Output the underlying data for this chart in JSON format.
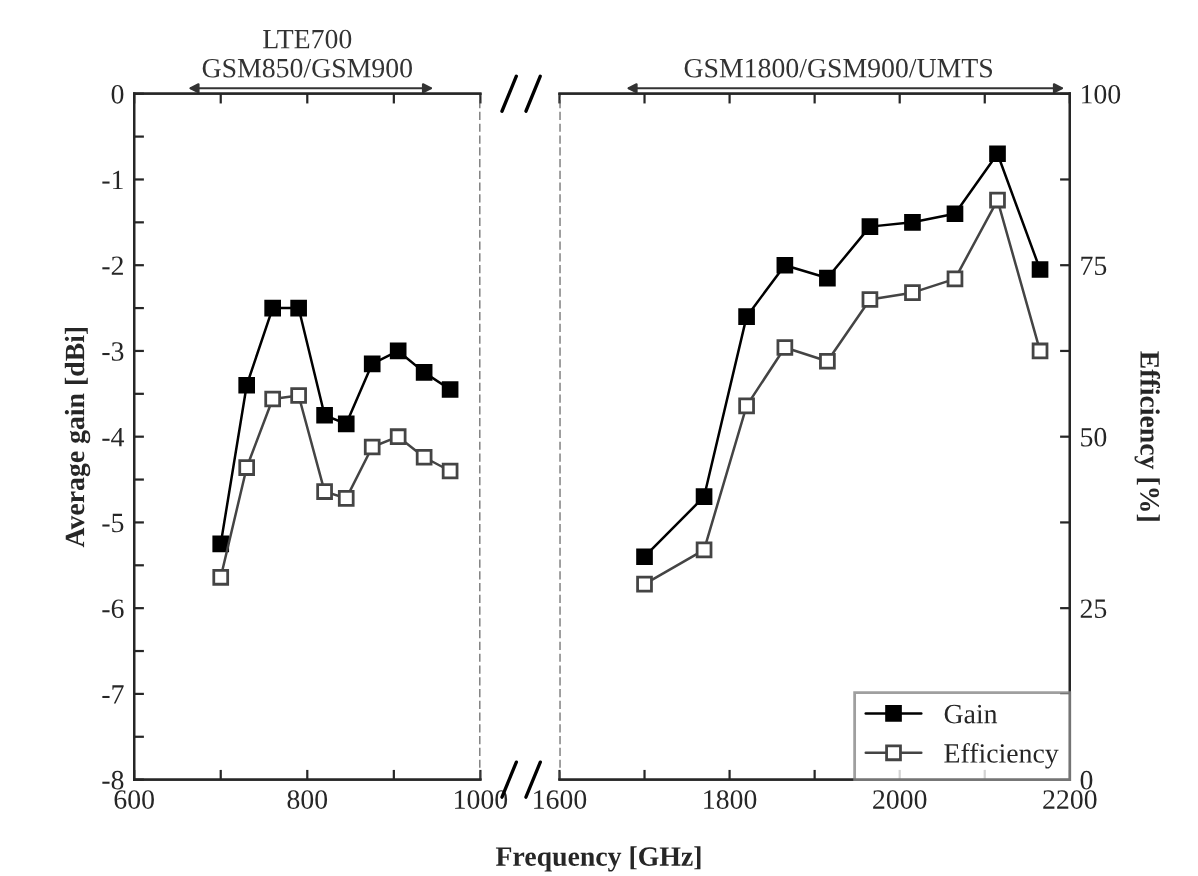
{
  "chart_data": [
    {
      "type": "line",
      "xlabel": "Frequency [GHz]",
      "ylabel": "Average gain [dBi]",
      "xlim": [
        600,
        1000
      ],
      "xticks": [
        600,
        {
          "value": 700,
          "label": null
        },
        800,
        {
          "value": 900,
          "label": null
        },
        1000
      ],
      "ylim": [
        -8,
        0
      ],
      "yticks": [
        -8,
        {
          "value": -7.5,
          "label": null
        },
        -7,
        {
          "value": -6.5,
          "label": null
        },
        -6,
        {
          "value": -5.5,
          "label": null
        },
        -5,
        {
          "value": -4.5,
          "label": null
        },
        -4,
        {
          "value": -3.5,
          "label": null
        },
        -3,
        {
          "value": -2.5,
          "label": null
        },
        -2,
        {
          "value": -1.5,
          "label": null
        },
        -1,
        {
          "value": -0.5,
          "label": null
        },
        0
      ],
      "y2lim": [
        0,
        100
      ],
      "marker": "square",
      "grid": false,
      "legend": false,
      "ref_lines": [
        {
          "axis": "x",
          "value": 1000,
          "label": null,
          "color": "#555555",
          "line_style": "dashed"
        }
      ],
      "annotations": [
        "LTE700\nGSM850/GSM900"
      ],
      "series": [
        {
          "color": "#000000",
          "x": [
            700,
            730,
            760,
            790,
            820,
            845,
            875,
            905,
            935,
            965
          ],
          "values": [
            -5.25,
            -3.4,
            -2.5,
            -2.5,
            -3.75,
            -3.85,
            -3.15,
            -3.0,
            -3.25,
            -3.45
          ]
        },
        {
          "color": "#444444",
          "axis": "y2",
          "x": [
            700,
            730,
            760,
            790,
            820,
            845,
            875,
            905,
            935,
            965
          ],
          "values": [
            29.5,
            45.5,
            55.5,
            56,
            42,
            41,
            48.5,
            50,
            47,
            45
          ]
        }
      ]
    },
    {
      "type": "line",
      "xlim": [
        1600,
        2200
      ],
      "xticks": [
        1600,
        {
          "value": 1700,
          "label": null
        },
        1800,
        {
          "value": 1900,
          "label": null
        },
        2000,
        {
          "value": 2100,
          "label": null
        },
        2200
      ],
      "ylim": [
        -8,
        0
      ],
      "y2label": "Efficiency [%]",
      "y2lim": [
        0,
        100
      ],
      "y2ticks": [
        0,
        {
          "value": 12.5,
          "label": null
        },
        25,
        {
          "value": 37.5,
          "label": null
        },
        50,
        {
          "value": 62.5,
          "label": null
        },
        75,
        {
          "value": 87.5,
          "label": null
        },
        100
      ],
      "marker": "square",
      "grid": false,
      "legend": "bottom right",
      "ref_lines": [
        {
          "axis": "x",
          "value": 1600,
          "label": null,
          "color": "#555555",
          "line_style": "dashed"
        }
      ],
      "annotations": [
        "GSM1800/GSM900/UMTS"
      ],
      "series": [
        {
          "name": "Gain",
          "color": "#000000",
          "x": [
            1700,
            1770,
            1820,
            1865,
            1915,
            1965,
            2015,
            2065,
            2115,
            2165
          ],
          "values": [
            -5.4,
            -4.7,
            -2.6,
            -2.0,
            -2.15,
            -1.55,
            -1.5,
            -1.4,
            -0.7,
            -2.05
          ]
        },
        {
          "name": "Efficiency",
          "color": "#444444",
          "axis": "y2",
          "x": [
            1700,
            1770,
            1820,
            1865,
            1915,
            1965,
            2015,
            2065,
            2115,
            2165
          ],
          "values": [
            28.5,
            33.5,
            54.5,
            63,
            61,
            70,
            71,
            73,
            84.5,
            62.5
          ]
        }
      ]
    }
  ]
}
